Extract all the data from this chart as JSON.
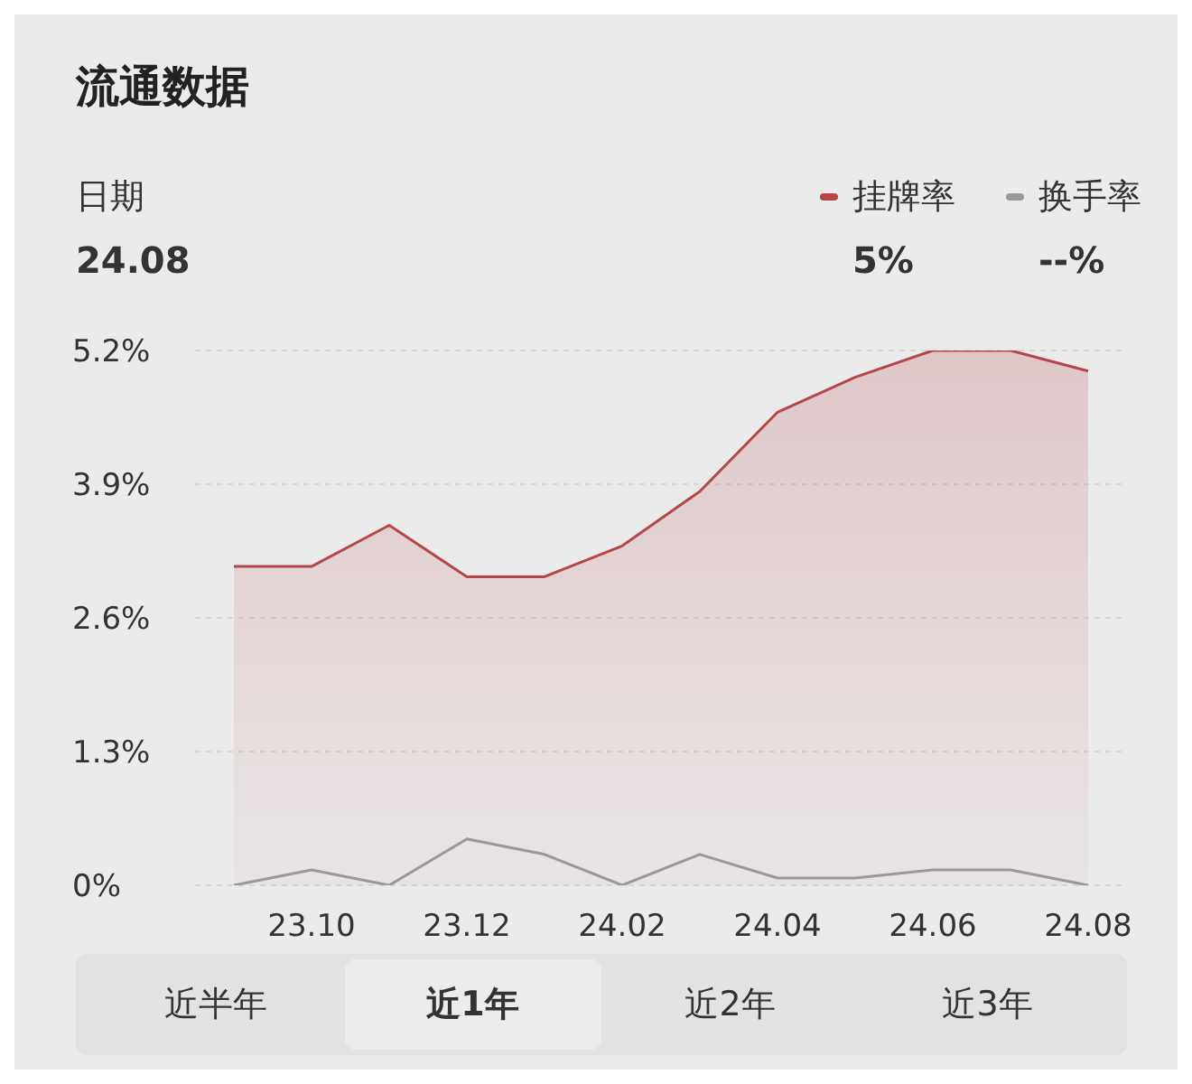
{
  "chart_data": {
    "type": "line",
    "title": "流通数据",
    "categories": [
      null,
      "23.10",
      null,
      "23.12",
      null,
      "24.02",
      null,
      "24.04",
      null,
      "24.06",
      null,
      "24.08"
    ],
    "series": [
      {
        "name": "挂牌率",
        "type": "area",
        "color": "#b5474b",
        "values": [
          3.1,
          3.1,
          3.5,
          3.0,
          3.0,
          3.3,
          3.83,
          4.6,
          4.94,
          5.2,
          5.2,
          5.0
        ]
      },
      {
        "name": "换手率",
        "type": "line",
        "color": "#999999",
        "values": [
          0,
          0.15,
          0,
          0.45,
          0.3,
          0,
          0.3,
          0.07,
          0.07,
          0.15,
          0.15,
          0
        ]
      }
    ],
    "ylim": [
      0,
      5.2
    ],
    "yticks": [
      {
        "value": 0,
        "label": "0%"
      },
      {
        "value": 1.3,
        "label": "1.3%"
      },
      {
        "value": 2.6,
        "label": "2.6%"
      },
      {
        "value": 3.9,
        "label": "3.9%"
      },
      {
        "value": 5.2,
        "label": "5.2%"
      }
    ],
    "grid": "y",
    "legend": "top right",
    "marker": "none",
    "annotations": [
      "日期",
      "24.08",
      "5%",
      "--%",
      "近半年",
      "近1年",
      "近2年",
      "近3年"
    ]
  }
}
